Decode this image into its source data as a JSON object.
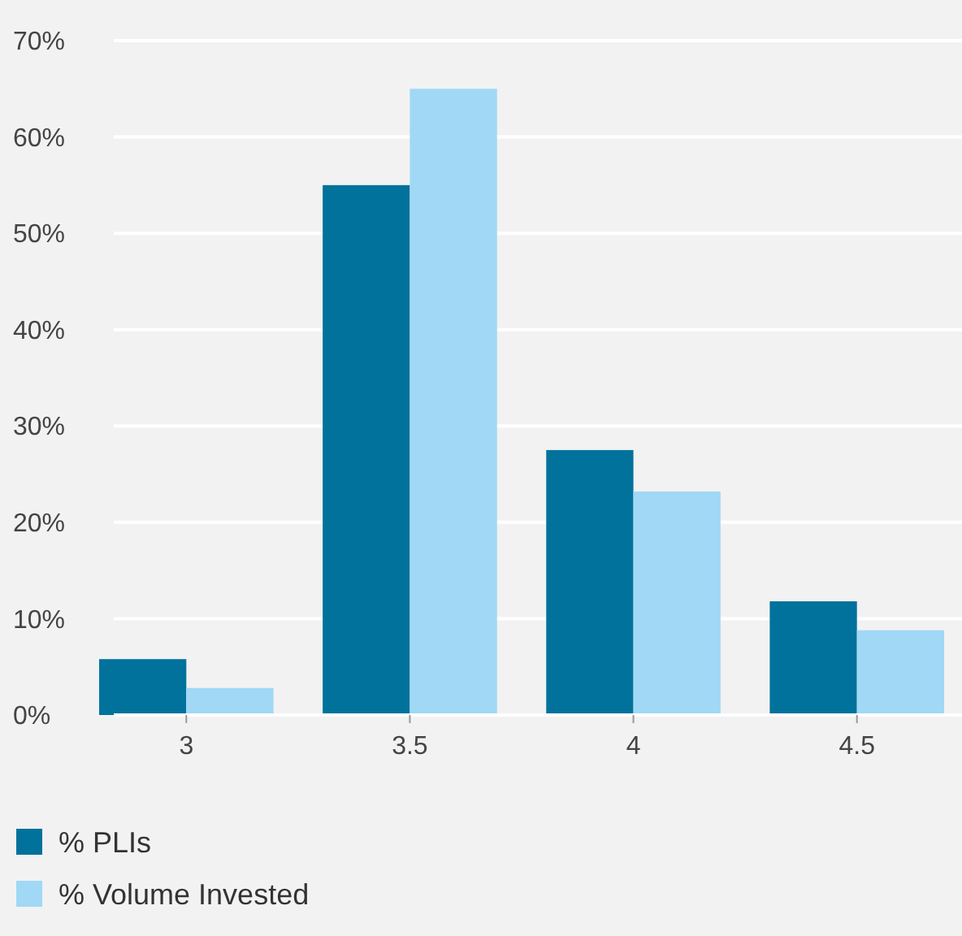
{
  "chart_data": {
    "type": "bar",
    "categories": [
      "3",
      "3.5",
      "4",
      "4.5"
    ],
    "series": [
      {
        "name": "% PLIs",
        "color": "#00729c",
        "values": [
          5.8,
          55,
          27.5,
          11.8
        ]
      },
      {
        "name": "% Volume Invested",
        "color": "#a0d8f5",
        "values": [
          2.8,
          65,
          23.2,
          8.8
        ]
      }
    ],
    "ylim": [
      0,
      70
    ],
    "yticks": [
      {
        "value": 0,
        "label": "0%"
      },
      {
        "value": 10,
        "label": "10%"
      },
      {
        "value": 20,
        "label": "20%"
      },
      {
        "value": 30,
        "label": "30%"
      },
      {
        "value": 40,
        "label": "40%"
      },
      {
        "value": 50,
        "label": "50%"
      },
      {
        "value": 60,
        "label": "60%"
      },
      {
        "value": 70,
        "label": "70%"
      }
    ],
    "grid": "y",
    "legend": "bottom left"
  }
}
